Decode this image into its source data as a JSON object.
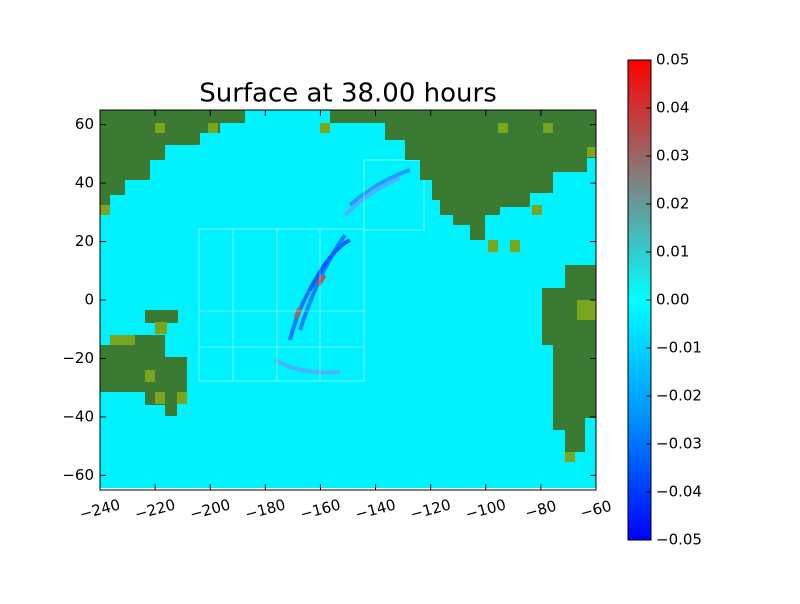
{
  "chart_data": {
    "type": "heatmap",
    "title": "Surface at 38.00 hours",
    "xlim": [
      -240,
      -60
    ],
    "ylim": [
      -65,
      65
    ],
    "xticks": [
      {
        "value": -240,
        "label": "−240"
      },
      {
        "value": -220,
        "label": "−220"
      },
      {
        "value": -200,
        "label": "−200"
      },
      {
        "value": -180,
        "label": "−180"
      },
      {
        "value": -160,
        "label": "−160"
      },
      {
        "value": -140,
        "label": "−140"
      },
      {
        "value": -120,
        "label": "−120"
      },
      {
        "value": -100,
        "label": "−100"
      },
      {
        "value": -80,
        "label": "−80"
      },
      {
        "value": -60,
        "label": "−60"
      }
    ],
    "yticks": [
      {
        "value": -60,
        "label": "−60"
      },
      {
        "value": -40,
        "label": "−40"
      },
      {
        "value": -20,
        "label": "−20"
      },
      0,
      20,
      40,
      60
    ],
    "clim": [
      -0.05,
      0.05
    ],
    "cticks": [
      {
        "value": -0.05,
        "label": "−0.05"
      },
      {
        "value": -0.04,
        "label": "−0.04"
      },
      {
        "value": -0.03,
        "label": "−0.03"
      },
      {
        "value": -0.02,
        "label": "−0.02"
      },
      {
        "value": -0.01,
        "label": "−0.01"
      },
      {
        "value": 0,
        "label": "0.00"
      },
      0.01,
      0.02,
      0.03,
      0.04,
      0.05
    ],
    "colormap": [
      "#0000ff",
      "#0090ff",
      "#00ffff",
      "#808080",
      "#ff0000"
    ]
  }
}
